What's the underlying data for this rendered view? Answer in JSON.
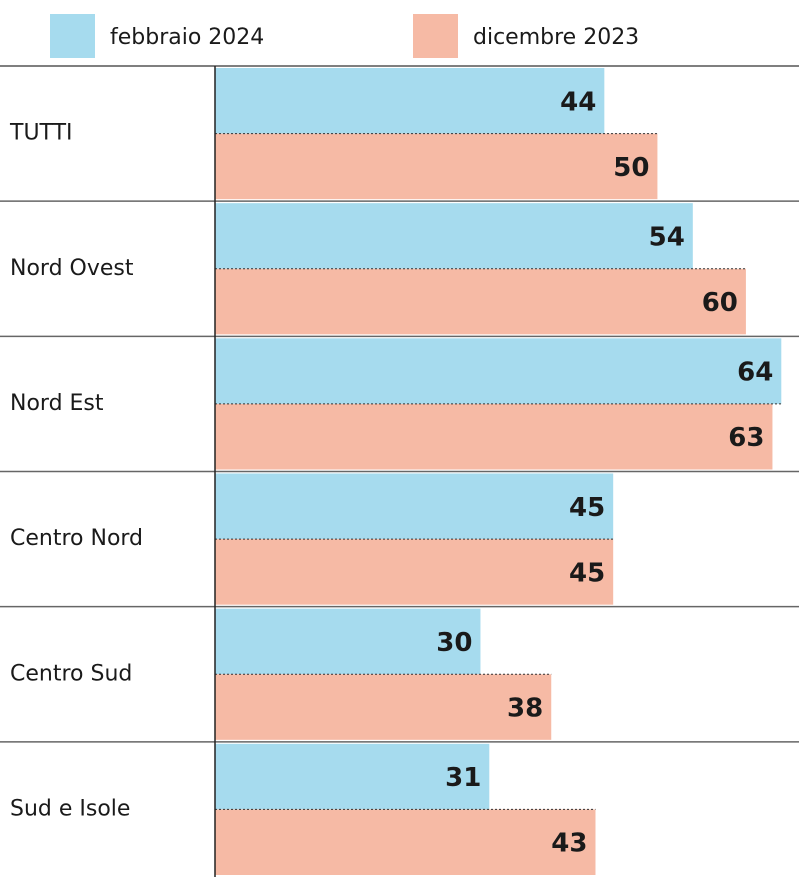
{
  "chart_data": {
    "type": "bar",
    "orientation": "horizontal",
    "categories": [
      "TUTTI",
      "Nord Ovest",
      "Nord Est",
      "Centro Nord",
      "Centro Sud",
      "Sud e Isole"
    ],
    "series": [
      {
        "name": "febbraio 2024",
        "color": "#a6dbee",
        "values": [
          44,
          54,
          64,
          45,
          30,
          31
        ]
      },
      {
        "name": "dicembre 2023",
        "color": "#f6baa5",
        "values": [
          50,
          60,
          63,
          45,
          38,
          43
        ]
      }
    ],
    "xlim": [
      0,
      66
    ]
  }
}
